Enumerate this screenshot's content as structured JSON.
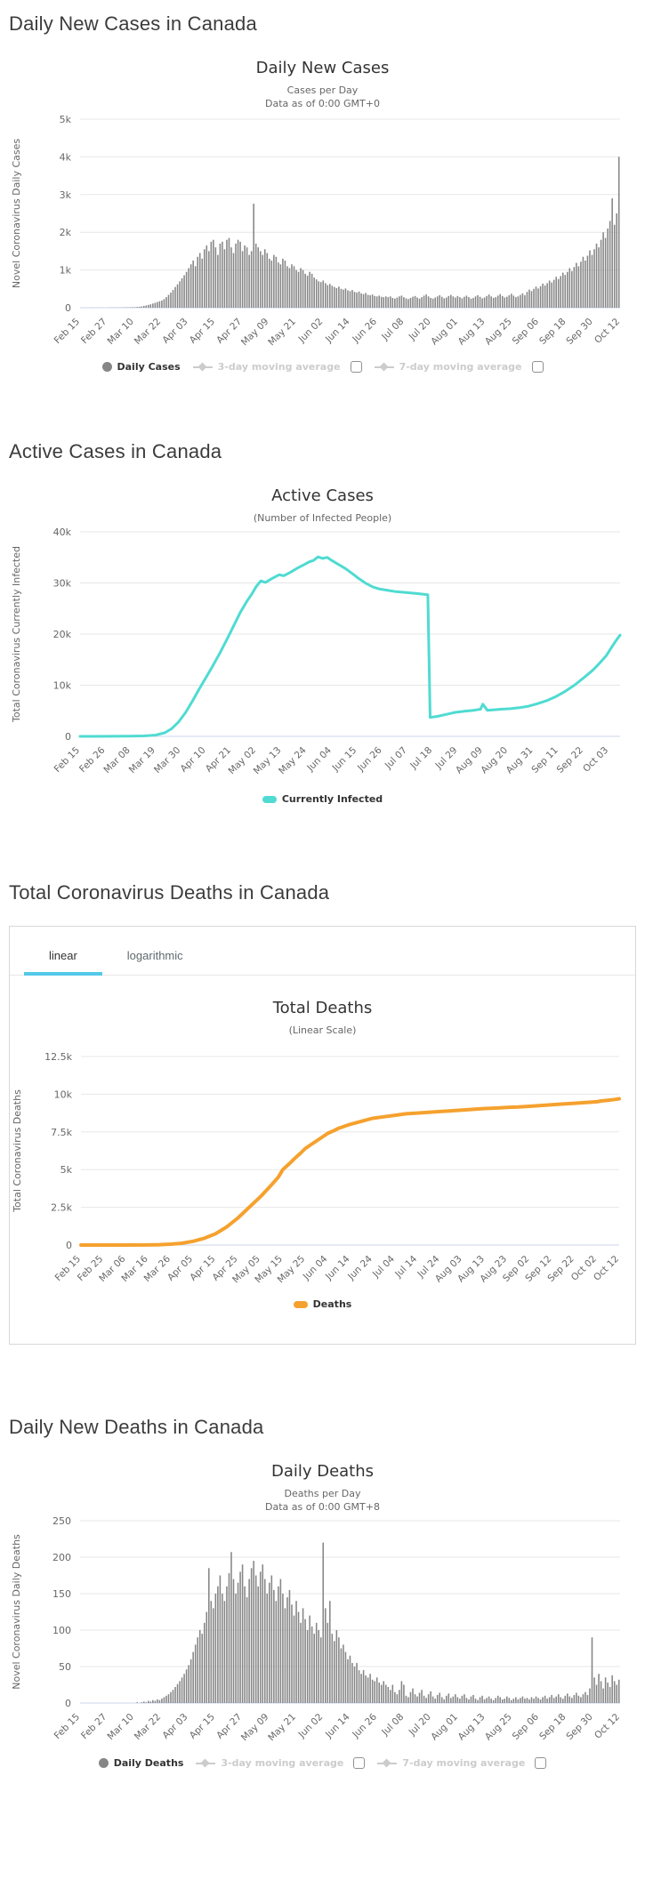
{
  "chart_data": [
    {
      "type": "bar",
      "section_heading": "Daily New Cases in Canada",
      "title": "Daily New Cases",
      "subtitle_lines": [
        "Cases per Day",
        "Data as of 0:00 GMT+0"
      ],
      "ylabel": "Novel Coronavirus Daily Cases",
      "ytick_labels": [
        "0",
        "1k",
        "2k",
        "3k",
        "4k",
        "5k"
      ],
      "ymax": 5000,
      "color": "#868686",
      "grid": true,
      "legend_position": "bottom",
      "xtick_labels": [
        "Feb 15",
        "Feb 27",
        "Mar 10",
        "Mar 22",
        "Apr 03",
        "Apr 15",
        "Apr 27",
        "May 09",
        "May 21",
        "Jun 02",
        "Jun 14",
        "Jun 26",
        "Jul 08",
        "Jul 20",
        "Aug 01",
        "Aug 13",
        "Aug 25",
        "Sep 06",
        "Sep 18",
        "Sep 30",
        "Oct 12"
      ],
      "tick_interval_days": 12,
      "total_days": 240,
      "values": [
        0,
        0,
        1,
        0,
        0,
        2,
        0,
        1,
        0,
        3,
        1,
        0,
        2,
        4,
        3,
        5,
        4,
        6,
        8,
        7,
        10,
        9,
        12,
        15,
        14,
        20,
        25,
        35,
        48,
        60,
        75,
        90,
        110,
        130,
        150,
        170,
        190,
        230,
        280,
        340,
        400,
        470,
        550,
        620,
        700,
        780,
        860,
        950,
        1050,
        1150,
        1250,
        1100,
        1350,
        1450,
        1300,
        1550,
        1650,
        1500,
        1750,
        1800,
        1600,
        1400,
        1700,
        1750,
        1550,
        1800,
        1850,
        1600,
        1450,
        1700,
        1800,
        1750,
        1500,
        1650,
        1600,
        1400,
        1500,
        2760,
        1700,
        1600,
        1500,
        1400,
        1550,
        1450,
        1300,
        1250,
        1400,
        1350,
        1200,
        1150,
        1300,
        1250,
        1100,
        1050,
        1150,
        1100,
        1000,
        950,
        1050,
        1000,
        900,
        850,
        950,
        900,
        800,
        750,
        700,
        680,
        720,
        650,
        600,
        630,
        580,
        550,
        520,
        560,
        500,
        480,
        510,
        460,
        440,
        470,
        420,
        400,
        430,
        380,
        360,
        390,
        340,
        330,
        350,
        310,
        300,
        320,
        290,
        280,
        300,
        280,
        300,
        260,
        240,
        270,
        300,
        320,
        280,
        250,
        230,
        260,
        290,
        310,
        270,
        240,
        280,
        320,
        350,
        300,
        260,
        240,
        270,
        300,
        330,
        290,
        250,
        270,
        310,
        340,
        300,
        270,
        310,
        280,
        250,
        290,
        320,
        280,
        240,
        260,
        300,
        330,
        290,
        250,
        270,
        310,
        350,
        300,
        260,
        280,
        320,
        360,
        310,
        270,
        290,
        330,
        370,
        320,
        280,
        300,
        340,
        380,
        330,
        420,
        480,
        440,
        500,
        560,
        510,
        570,
        640,
        590,
        650,
        720,
        670,
        740,
        820,
        760,
        840,
        930,
        870,
        950,
        1050,
        970,
        1080,
        1190,
        1100,
        1220,
        1350,
        1250,
        1380,
        1520,
        1400,
        1550,
        1700,
        1600,
        1800,
        2000,
        1850,
        2100,
        2300,
        2900,
        2200,
        2500,
        4000
      ],
      "legend": {
        "primary": "Daily Cases",
        "ma3": "3-day moving average",
        "ma7": "7-day moving average"
      }
    },
    {
      "type": "line",
      "section_heading": "Active Cases in Canada",
      "title": "Active Cases",
      "subtitle_lines": [
        "(Number of Infected People)"
      ],
      "ylabel": "Total Coronavirus Currently Infected",
      "ytick_labels": [
        "0",
        "10k",
        "20k",
        "30k",
        "40k"
      ],
      "ymax": 40000,
      "color": "#4fdbd2",
      "line_width": 3,
      "grid": true,
      "legend_position": "bottom",
      "xtick_labels": [
        "Feb 15",
        "Feb 26",
        "Mar 08",
        "Mar 19",
        "Mar 30",
        "Apr 10",
        "Apr 21",
        "May 02",
        "May 13",
        "May 24",
        "Jun 04",
        "Jun 15",
        "Jun 26",
        "Jul 07",
        "Jul 18",
        "Jul 29",
        "Aug 09",
        "Aug 20",
        "Aug 31",
        "Sep 11",
        "Sep 22",
        "Oct 03"
      ],
      "tick_interval_days": 11,
      "total_days": 236,
      "points": [
        [
          0,
          3
        ],
        [
          8,
          6
        ],
        [
          15,
          12
        ],
        [
          22,
          30
        ],
        [
          28,
          80
        ],
        [
          33,
          250
        ],
        [
          37,
          700
        ],
        [
          40,
          1500
        ],
        [
          43,
          2800
        ],
        [
          46,
          4600
        ],
        [
          49,
          6800
        ],
        [
          52,
          9200
        ],
        [
          55,
          11500
        ],
        [
          58,
          13800
        ],
        [
          61,
          16200
        ],
        [
          64,
          18800
        ],
        [
          67,
          21500
        ],
        [
          70,
          24200
        ],
        [
          73,
          26500
        ],
        [
          75,
          27800
        ],
        [
          77,
          29300
        ],
        [
          79,
          30400
        ],
        [
          81,
          30100
        ],
        [
          84,
          30900
        ],
        [
          87,
          31600
        ],
        [
          89,
          31400
        ],
        [
          92,
          32100
        ],
        [
          95,
          32900
        ],
        [
          98,
          33600
        ],
        [
          100,
          34100
        ],
        [
          102,
          34400
        ],
        [
          104,
          35100
        ],
        [
          106,
          34800
        ],
        [
          108,
          35000
        ],
        [
          110,
          34400
        ],
        [
          113,
          33600
        ],
        [
          116,
          32800
        ],
        [
          119,
          31800
        ],
        [
          122,
          30800
        ],
        [
          125,
          29900
        ],
        [
          128,
          29200
        ],
        [
          131,
          28800
        ],
        [
          134,
          28600
        ],
        [
          138,
          28300
        ],
        [
          143,
          28100
        ],
        [
          148,
          27900
        ],
        [
          152,
          27700
        ],
        [
          153,
          3700
        ],
        [
          156,
          3900
        ],
        [
          160,
          4300
        ],
        [
          164,
          4700
        ],
        [
          168,
          4900
        ],
        [
          172,
          5100
        ],
        [
          175,
          5300
        ],
        [
          176,
          6300
        ],
        [
          178,
          5100
        ],
        [
          181,
          5200
        ],
        [
          184,
          5300
        ],
        [
          188,
          5400
        ],
        [
          192,
          5600
        ],
        [
          196,
          5900
        ],
        [
          200,
          6400
        ],
        [
          204,
          7000
        ],
        [
          208,
          7800
        ],
        [
          212,
          8800
        ],
        [
          216,
          10000
        ],
        [
          220,
          11400
        ],
        [
          224,
          12900
        ],
        [
          227,
          14300
        ],
        [
          230,
          15800
        ],
        [
          232,
          17200
        ],
        [
          234,
          18600
        ],
        [
          235,
          19200
        ],
        [
          236,
          19800
        ]
      ],
      "legend": {
        "primary": "Currently Infected"
      }
    },
    {
      "type": "line",
      "section_heading": "Total Coronavirus Deaths in Canada",
      "scale_tabs": {
        "linear_label": "linear",
        "log_label": "logarithmic",
        "active": "linear",
        "accent": "#54c8e8"
      },
      "title": "Total Deaths",
      "subtitle_lines": [
        "(Linear Scale)"
      ],
      "ylabel": "Total Coronavirus Deaths",
      "ytick_labels": [
        "0",
        "2.5k",
        "5k",
        "7.5k",
        "10k",
        "12.5k"
      ],
      "ymax": 12500,
      "color": "#f5a12e",
      "line_width": 4,
      "grid": true,
      "legend_position": "bottom",
      "xtick_labels": [
        "Feb 15",
        "Feb 25",
        "Mar 06",
        "Mar 16",
        "Mar 26",
        "Apr 05",
        "Apr 15",
        "Apr 25",
        "May 05",
        "May 15",
        "May 25",
        "Jun 04",
        "Jun 14",
        "Jun 24",
        "Jul 04",
        "Jul 14",
        "Jul 24",
        "Aug 03",
        "Aug 13",
        "Aug 23",
        "Sep 02",
        "Sep 12",
        "Sep 22",
        "Oct 02",
        "Oct 12"
      ],
      "tick_interval_days": 10,
      "total_days": 240,
      "points": [
        [
          0,
          0
        ],
        [
          20,
          1
        ],
        [
          30,
          8
        ],
        [
          35,
          25
        ],
        [
          40,
          60
        ],
        [
          45,
          120
        ],
        [
          50,
          250
        ],
        [
          55,
          450
        ],
        [
          60,
          750
        ],
        [
          65,
          1200
        ],
        [
          70,
          1800
        ],
        [
          75,
          2500
        ],
        [
          80,
          3200
        ],
        [
          85,
          4000
        ],
        [
          88,
          4500
        ],
        [
          90,
          5000
        ],
        [
          93,
          5400
        ],
        [
          95,
          5700
        ],
        [
          98,
          6100
        ],
        [
          100,
          6400
        ],
        [
          103,
          6700
        ],
        [
          105,
          6900
        ],
        [
          108,
          7200
        ],
        [
          110,
          7400
        ],
        [
          113,
          7600
        ],
        [
          115,
          7750
        ],
        [
          118,
          7900
        ],
        [
          120,
          8000
        ],
        [
          125,
          8200
        ],
        [
          130,
          8400
        ],
        [
          135,
          8500
        ],
        [
          140,
          8600
        ],
        [
          145,
          8700
        ],
        [
          150,
          8750
        ],
        [
          155,
          8800
        ],
        [
          160,
          8850
        ],
        [
          165,
          8900
        ],
        [
          170,
          8950
        ],
        [
          175,
          9000
        ],
        [
          180,
          9050
        ],
        [
          185,
          9080
        ],
        [
          190,
          9120
        ],
        [
          195,
          9150
        ],
        [
          200,
          9200
        ],
        [
          205,
          9250
        ],
        [
          210,
          9300
        ],
        [
          215,
          9350
        ],
        [
          220,
          9400
        ],
        [
          225,
          9450
        ],
        [
          228,
          9480
        ],
        [
          230,
          9500
        ],
        [
          232,
          9550
        ],
        [
          235,
          9600
        ],
        [
          238,
          9650
        ],
        [
          240,
          9700
        ]
      ],
      "legend": {
        "primary": "Deaths"
      }
    },
    {
      "type": "bar",
      "section_heading": "Daily New Deaths in Canada",
      "title": "Daily Deaths",
      "subtitle_lines": [
        "Deaths per Day",
        "Data as of 0:00 GMT+8"
      ],
      "ylabel": "Novel Coronavirus Daily Deaths",
      "ytick_labels": [
        "0",
        "50",
        "100",
        "150",
        "200",
        "250"
      ],
      "ymax": 250,
      "color": "#868686",
      "grid": true,
      "legend_position": "bottom",
      "xtick_labels": [
        "Feb 15",
        "Feb 27",
        "Mar 10",
        "Mar 22",
        "Apr 03",
        "Apr 15",
        "Apr 27",
        "May 09",
        "May 21",
        "Jun 02",
        "Jun 14",
        "Jun 26",
        "Jul 08",
        "Jul 20",
        "Aug 01",
        "Aug 13",
        "Aug 25",
        "Sep 06",
        "Sep 18",
        "Sep 30",
        "Oct 12"
      ],
      "tick_interval_days": 12,
      "total_days": 240,
      "values": [
        0,
        0,
        0,
        0,
        0,
        0,
        0,
        0,
        0,
        0,
        0,
        0,
        0,
        0,
        0,
        0,
        0,
        0,
        0,
        0,
        0,
        0,
        0,
        0,
        0,
        1,
        0,
        1,
        2,
        1,
        3,
        2,
        4,
        3,
        5,
        4,
        6,
        8,
        10,
        12,
        15,
        18,
        22,
        26,
        30,
        35,
        40,
        46,
        52,
        60,
        70,
        80,
        90,
        100,
        95,
        110,
        125,
        185,
        140,
        130,
        150,
        160,
        175,
        150,
        140,
        160,
        178,
        207,
        170,
        150,
        165,
        180,
        190,
        160,
        145,
        170,
        185,
        195,
        175,
        160,
        180,
        190,
        170,
        150,
        165,
        175,
        155,
        140,
        160,
        170,
        150,
        130,
        145,
        155,
        135,
        120,
        140,
        125,
        110,
        130,
        115,
        100,
        120,
        105,
        95,
        110,
        100,
        90,
        220,
        130,
        110,
        140,
        95,
        85,
        100,
        90,
        75,
        80,
        70,
        60,
        65,
        55,
        50,
        55,
        45,
        40,
        45,
        38,
        35,
        40,
        32,
        30,
        35,
        28,
        25,
        30,
        25,
        22,
        18,
        25,
        15,
        12,
        18,
        30,
        25,
        10,
        8,
        15,
        20,
        12,
        9,
        14,
        18,
        10,
        7,
        12,
        16,
        9,
        6,
        11,
        14,
        8,
        5,
        10,
        13,
        7,
        9,
        12,
        8,
        6,
        10,
        12,
        7,
        5,
        9,
        11,
        6,
        4,
        8,
        10,
        5,
        7,
        9,
        6,
        4,
        7,
        10,
        8,
        5,
        6,
        9,
        7,
        4,
        6,
        8,
        5,
        7,
        9,
        6,
        7,
        5,
        8,
        6,
        9,
        7,
        5,
        8,
        10,
        6,
        8,
        11,
        7,
        9,
        12,
        8,
        6,
        10,
        13,
        9,
        7,
        11,
        14,
        10,
        8,
        12,
        15,
        11,
        20,
        90,
        35,
        25,
        40,
        30,
        20,
        35,
        28,
        22,
        38,
        30,
        25,
        32
      ],
      "legend": {
        "primary": "Daily Deaths",
        "ma3": "3-day moving average",
        "ma7": "7-day moving average"
      }
    }
  ]
}
